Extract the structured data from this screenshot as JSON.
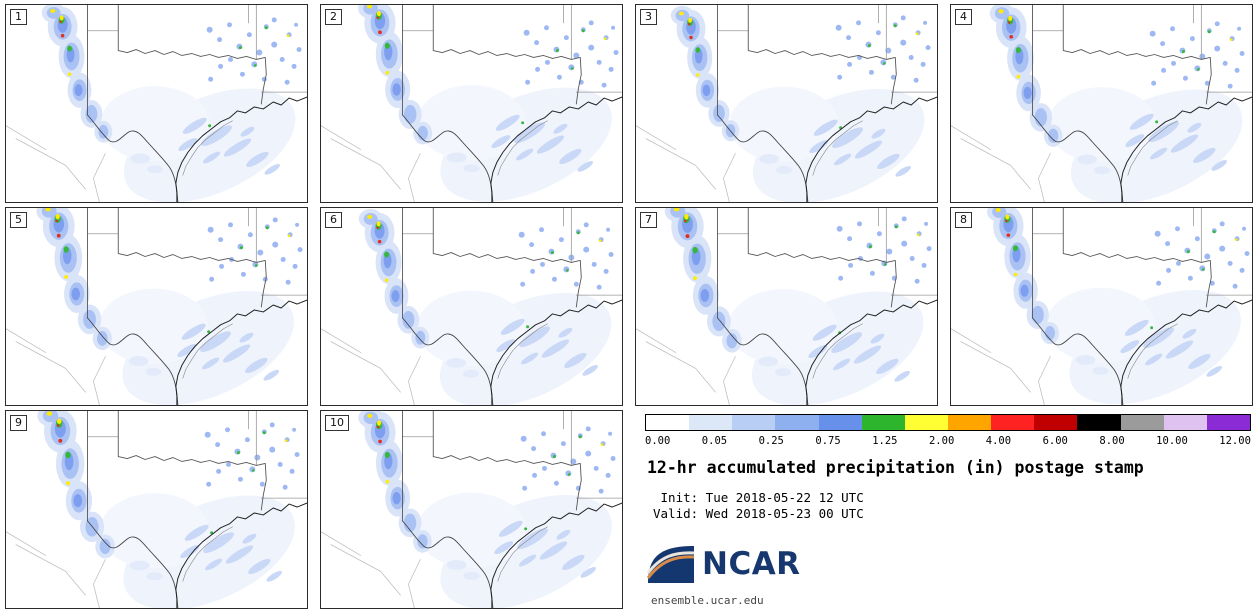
{
  "figure": {
    "title": "12-hr accumulated precipitation (in) postage stamp",
    "init_line": " Init: Tue 2018-05-22 12 UTC",
    "valid_line": "Valid: Wed 2018-05-23 00 UTC",
    "brand": "NCAR",
    "site": "ensemble.ucar.edu"
  },
  "panels": [
    {
      "label": "1"
    },
    {
      "label": "2"
    },
    {
      "label": "3"
    },
    {
      "label": "4"
    },
    {
      "label": "5"
    },
    {
      "label": "6"
    },
    {
      "label": "7"
    },
    {
      "label": "8"
    },
    {
      "label": "9"
    },
    {
      "label": "10"
    }
  ],
  "colorbar": {
    "units": "in",
    "ticks": [
      "0.00",
      "0.05",
      "0.25",
      "0.75",
      "1.25",
      "2.00",
      "4.00",
      "6.00",
      "8.00",
      "10.00",
      "12.00"
    ],
    "colors": [
      "#ffffff",
      "#dce7f8",
      "#b9cef4",
      "#8fb0ee",
      "#6690ea",
      "#2eb52e",
      "#ffff33",
      "#ffa500",
      "#ff2222",
      "#c00000",
      "#000000",
      "#9b9b9b",
      "#e0c2f0",
      "#8a2bd6"
    ]
  }
}
